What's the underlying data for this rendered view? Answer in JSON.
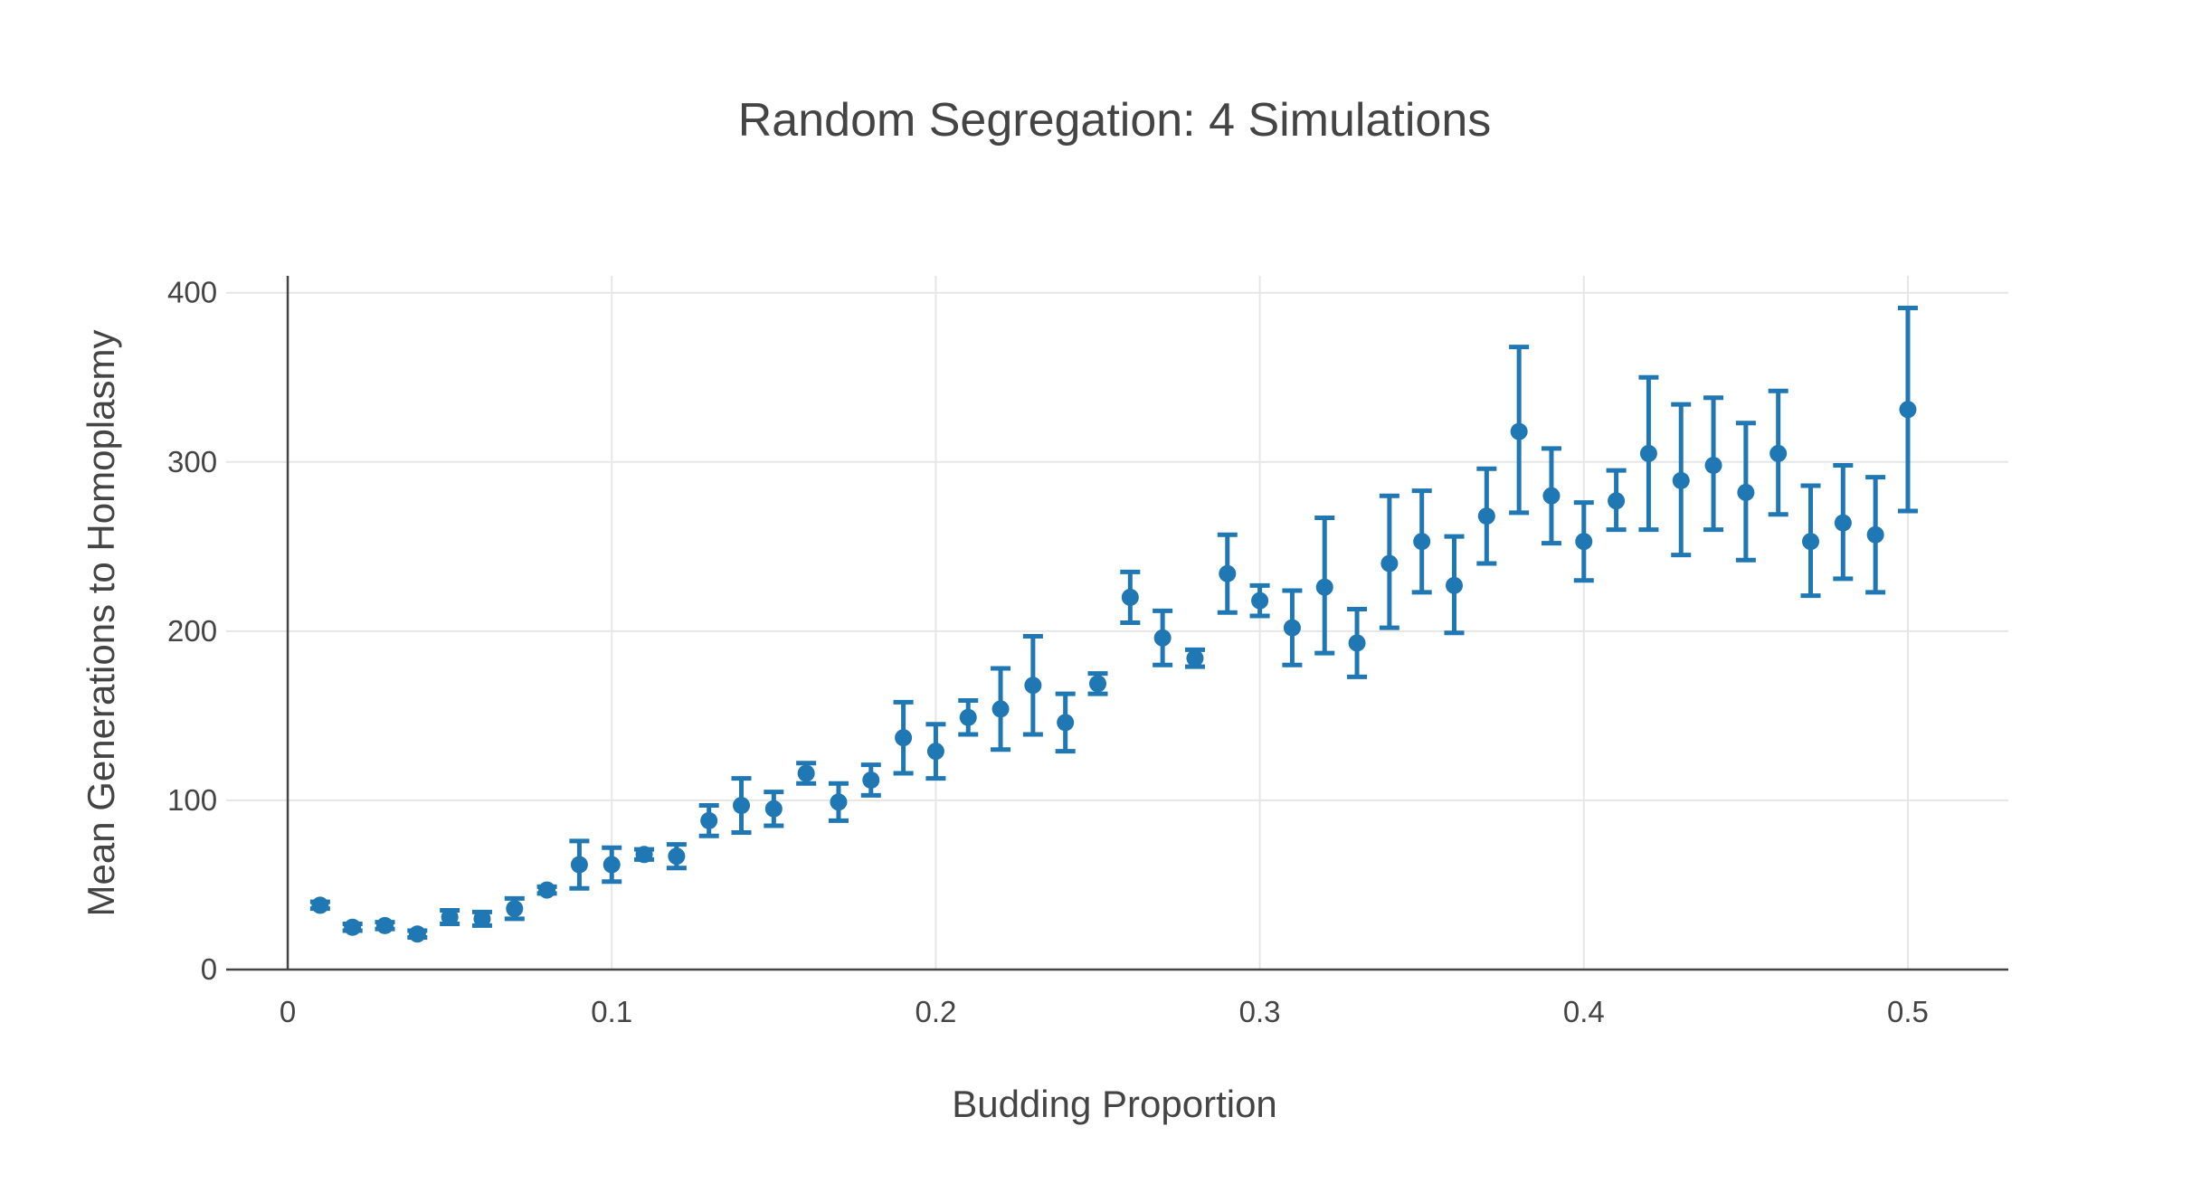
{
  "chart_data": {
    "type": "scatter",
    "title": "Random Segregation: 4 Simulations",
    "xlabel": "Budding Proportion",
    "ylabel": "Mean Generations to Homoplasmy",
    "xlim": [
      -0.019,
      0.531
    ],
    "ylim": [
      0,
      410
    ],
    "x_ticks": [
      0,
      0.1,
      0.2,
      0.3,
      0.4,
      0.5
    ],
    "x_tick_labels": [
      "0",
      "0.1",
      "0.2",
      "0.3",
      "0.4",
      "0.5"
    ],
    "y_ticks": [
      0,
      100,
      200,
      300,
      400
    ],
    "y_tick_labels": [
      "0",
      "100",
      "200",
      "300",
      "400"
    ],
    "grid": true,
    "legend": "none",
    "color": "#1f77b4",
    "series": [
      {
        "x": [
          0.01,
          0.02,
          0.03,
          0.04,
          0.05,
          0.06,
          0.07,
          0.08,
          0.09,
          0.1,
          0.11,
          0.12,
          0.13,
          0.14,
          0.15,
          0.16,
          0.17,
          0.18,
          0.19,
          0.2,
          0.21,
          0.22,
          0.23,
          0.24,
          0.25,
          0.26,
          0.27,
          0.28,
          0.29,
          0.3,
          0.31,
          0.32,
          0.33,
          0.34,
          0.35,
          0.36,
          0.37,
          0.38,
          0.39,
          0.4,
          0.41,
          0.42,
          0.43,
          0.44,
          0.45,
          0.46,
          0.47,
          0.48,
          0.49,
          0.5
        ],
        "y": [
          38,
          25,
          26,
          21,
          31,
          30,
          36,
          47,
          62,
          62,
          68,
          67,
          88,
          97,
          95,
          116,
          99,
          112,
          137,
          129,
          149,
          154,
          168,
          146,
          169,
          220,
          196,
          184,
          234,
          218,
          202,
          226,
          193,
          240,
          253,
          227,
          268,
          318,
          280,
          253,
          277,
          305,
          289,
          298,
          282,
          305,
          253,
          264,
          257,
          331
        ],
        "error_low": [
          2,
          2,
          2,
          2,
          4,
          4,
          6,
          2,
          14,
          10,
          3,
          7,
          9,
          16,
          10,
          6,
          11,
          9,
          21,
          16,
          10,
          24,
          29,
          17,
          6,
          15,
          16,
          5,
          23,
          9,
          22,
          39,
          20,
          38,
          30,
          28,
          28,
          48,
          28,
          23,
          17,
          45,
          44,
          38,
          40,
          36,
          32,
          33,
          34,
          60
        ],
        "error_high": [
          2,
          2,
          2,
          2,
          4,
          4,
          6,
          2,
          14,
          10,
          3,
          7,
          9,
          16,
          10,
          6,
          11,
          9,
          21,
          16,
          10,
          24,
          29,
          17,
          6,
          15,
          16,
          5,
          23,
          9,
          22,
          41,
          20,
          40,
          30,
          29,
          28,
          50,
          28,
          23,
          18,
          45,
          45,
          40,
          41,
          37,
          33,
          34,
          34,
          60
        ]
      }
    ]
  }
}
